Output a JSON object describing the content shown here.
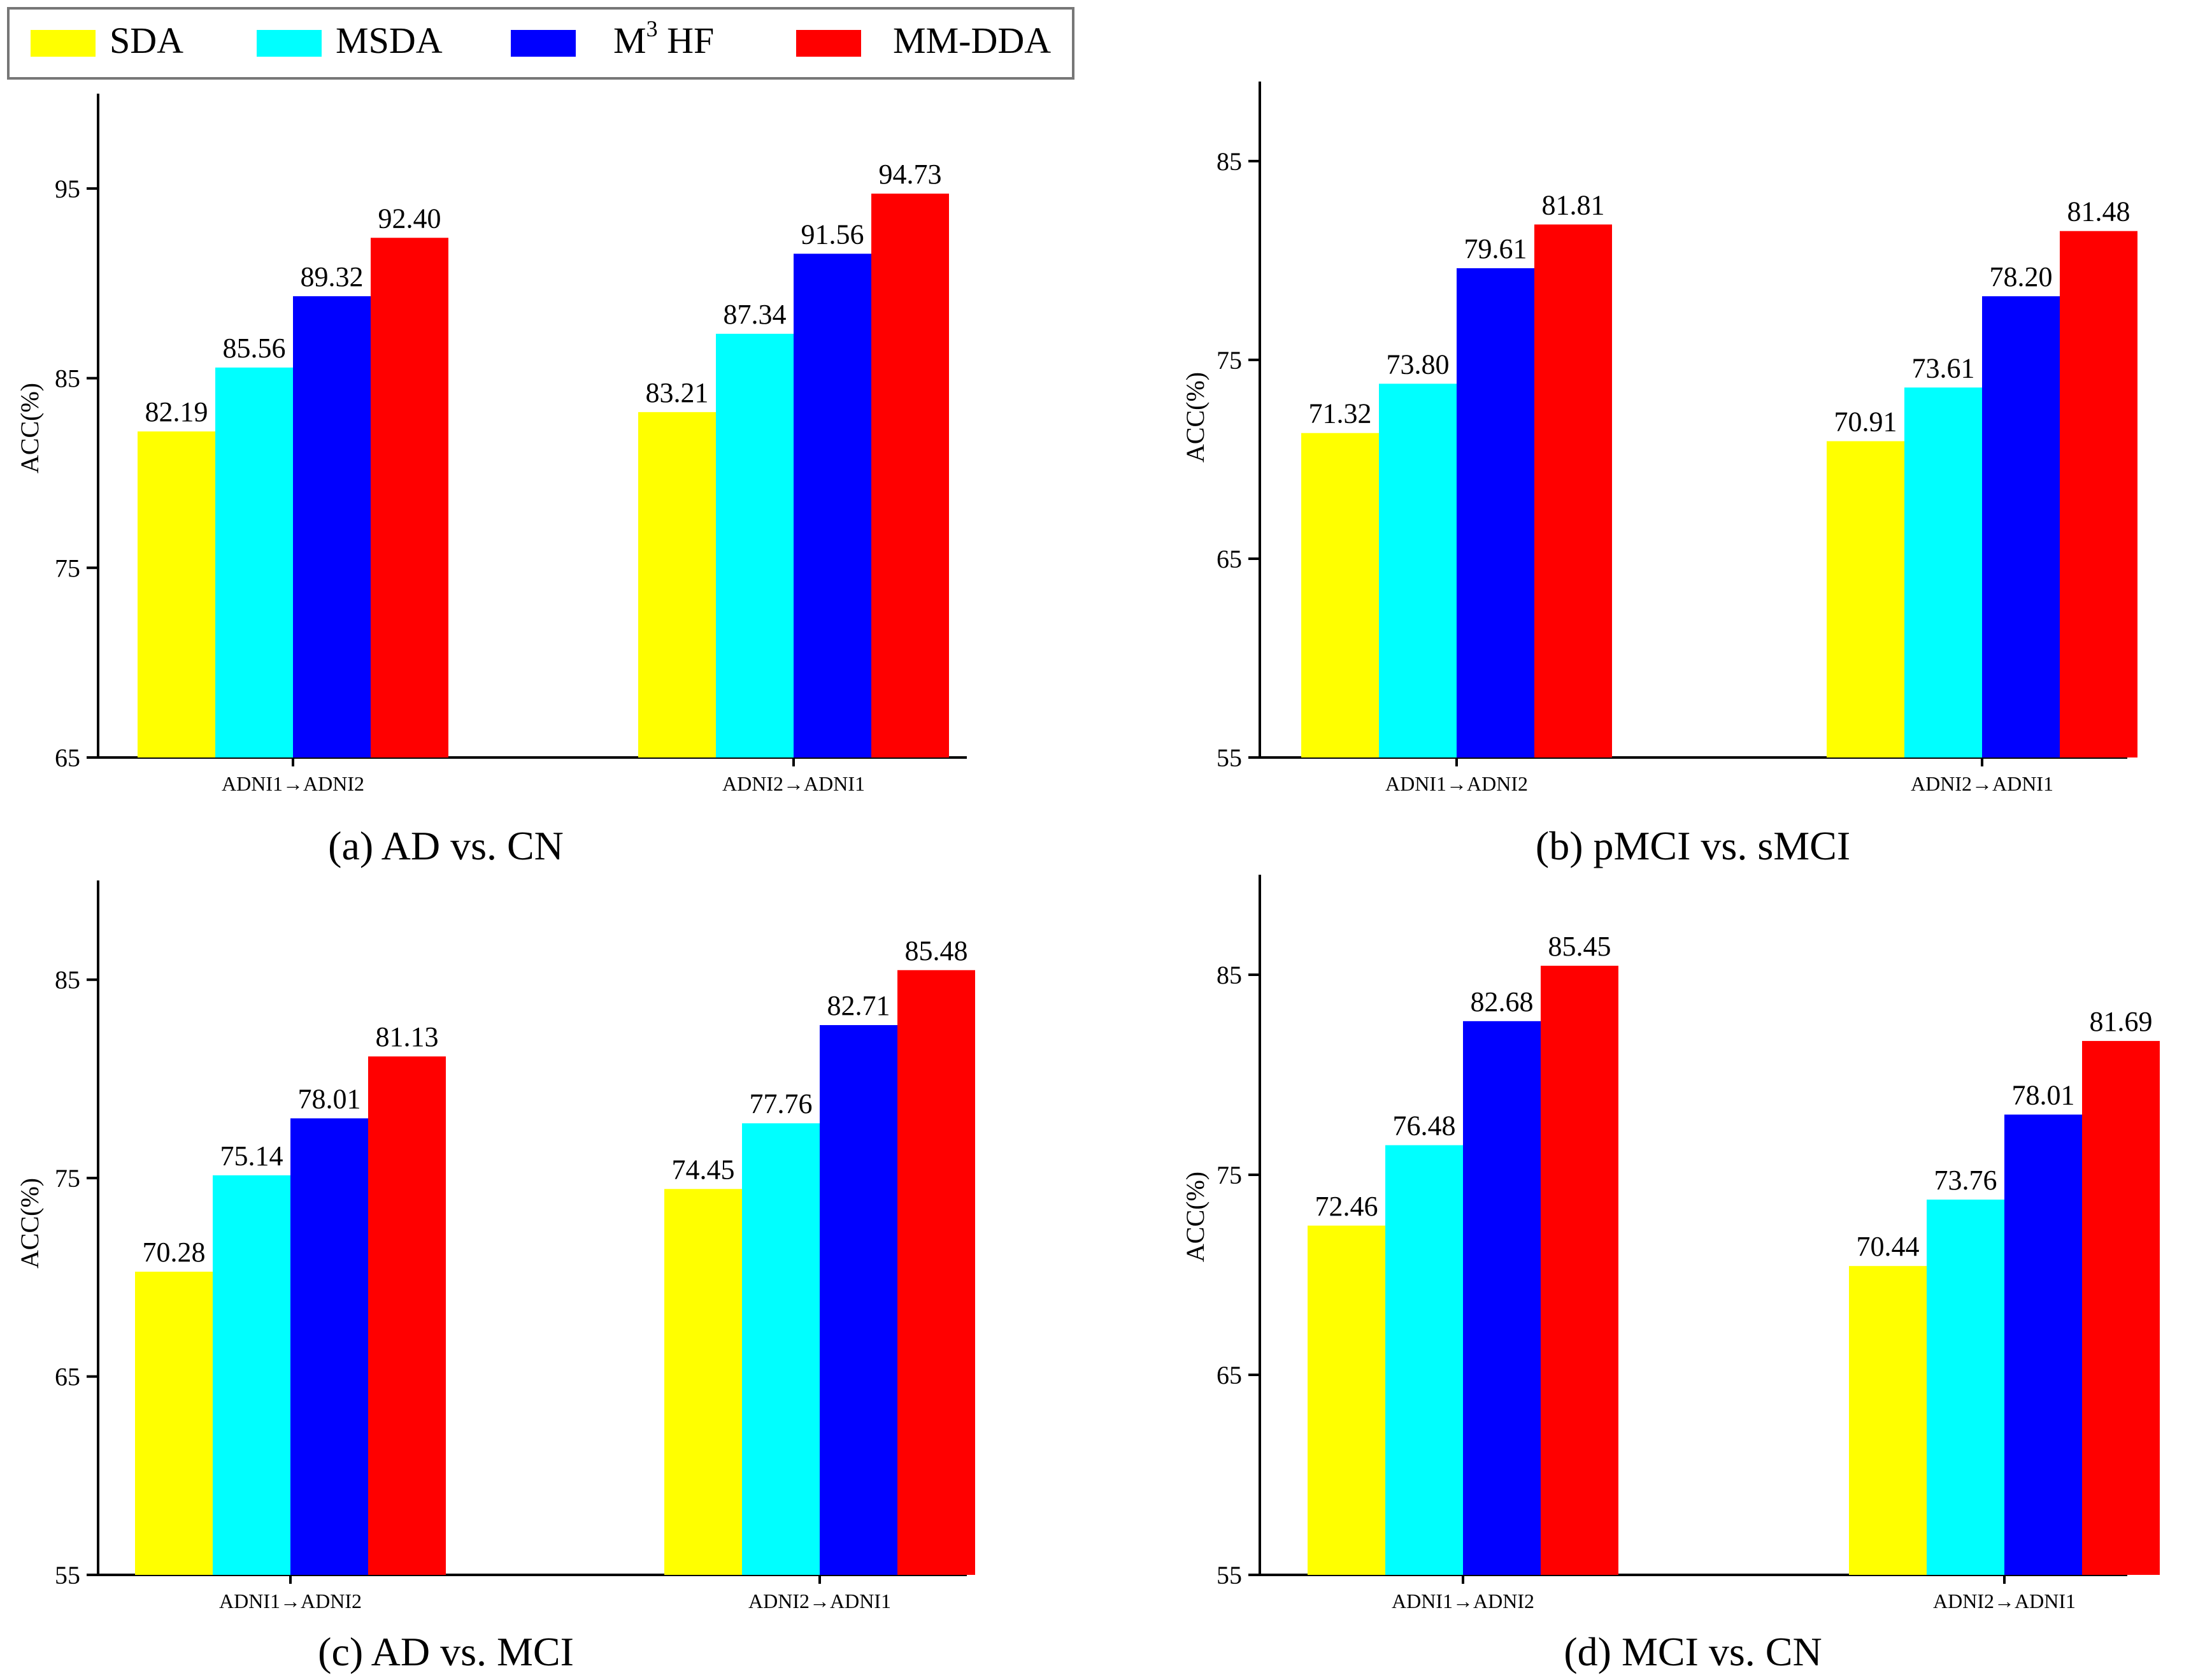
{
  "legend": [
    {
      "label": "SDA",
      "color": "#ffff00"
    },
    {
      "label": "MSDA",
      "color": "#00ffff"
    },
    {
      "label": "M",
      "sup": "3",
      "label_rest": " HF",
      "color": "#0000ff"
    },
    {
      "label": "MM-DDA",
      "color": "#ff0000"
    }
  ],
  "chart_data": [
    {
      "type": "bar",
      "title": "(a) AD vs. CN",
      "ylabel": "ACC(%)",
      "xlabel": "",
      "categories": [
        "ADNI1→ADNI2",
        "ADNI2→ADNI1"
      ],
      "ylim": [
        65,
        100
      ],
      "yticks": [
        65,
        75,
        85,
        95
      ],
      "series": [
        {
          "name": "SDA",
          "values": [
            82.19,
            83.21
          ]
        },
        {
          "name": "MSDA",
          "values": [
            85.56,
            87.34
          ]
        },
        {
          "name": "M3 HF",
          "values": [
            89.32,
            91.56
          ]
        },
        {
          "name": "MM-DDA",
          "values": [
            92.4,
            94.73
          ]
        }
      ],
      "data_labels": [
        [
          "82.19",
          "85.56",
          "89.32",
          "92.40"
        ],
        [
          "83.21",
          "87.34",
          "91.56",
          "94.73"
        ]
      ]
    },
    {
      "type": "bar",
      "title": "(b) pMCI vs. sMCI",
      "ylabel": "ACC(%)",
      "xlabel": "",
      "categories": [
        "ADNI1→ADNI2",
        "ADNI2→ADNI1"
      ],
      "ylim": [
        55,
        89
      ],
      "yticks": [
        55,
        65,
        75,
        85
      ],
      "series": [
        {
          "name": "SDA",
          "values": [
            71.32,
            70.91
          ]
        },
        {
          "name": "MSDA",
          "values": [
            73.8,
            73.61
          ]
        },
        {
          "name": "M3 HF",
          "values": [
            79.61,
            78.2
          ]
        },
        {
          "name": "MM-DDA",
          "values": [
            81.81,
            81.48
          ]
        }
      ],
      "data_labels": [
        [
          "71.32",
          "73.80",
          "79.61",
          "81.81"
        ],
        [
          "70.91",
          "73.61",
          "78.20",
          "81.48"
        ]
      ]
    },
    {
      "type": "bar",
      "title": "(c) AD vs. MCI",
      "ylabel": "ACC(%)",
      "xlabel": "",
      "categories": [
        "ADNI1→ADNI2",
        "ADNI2→ADNI1"
      ],
      "ylim": [
        55,
        90
      ],
      "yticks": [
        55,
        65,
        75,
        85
      ],
      "series": [
        {
          "name": "SDA",
          "values": [
            70.28,
            74.45
          ]
        },
        {
          "name": "MSDA",
          "values": [
            75.14,
            77.76
          ]
        },
        {
          "name": "M3 HF",
          "values": [
            78.01,
            82.71
          ]
        },
        {
          "name": "MM-DDA",
          "values": [
            81.13,
            85.48
          ]
        }
      ],
      "data_labels": [
        [
          "70.28",
          "75.14",
          "78.01",
          "81.13"
        ],
        [
          "74.45",
          "77.76",
          "82.71",
          "85.48"
        ]
      ]
    },
    {
      "type": "bar",
      "title": "(d) MCI vs. CN",
      "ylabel": "ACC(%)",
      "xlabel": "",
      "categories": [
        "ADNI1→ADNI2",
        "ADNI2→ADNI1"
      ],
      "ylim": [
        55,
        90
      ],
      "yticks": [
        55,
        65,
        75,
        85
      ],
      "series": [
        {
          "name": "SDA",
          "values": [
            72.46,
            70.44
          ]
        },
        {
          "name": "MSDA",
          "values": [
            76.48,
            73.76
          ]
        },
        {
          "name": "M3 HF",
          "values": [
            82.68,
            78.01
          ]
        },
        {
          "name": "MM-DDA",
          "values": [
            85.45,
            81.69
          ]
        }
      ],
      "data_labels": [
        [
          "72.46",
          "76.48",
          "82.68",
          "85.45"
        ],
        [
          "70.44",
          "73.76",
          "78.01",
          "81.69"
        ]
      ]
    }
  ]
}
